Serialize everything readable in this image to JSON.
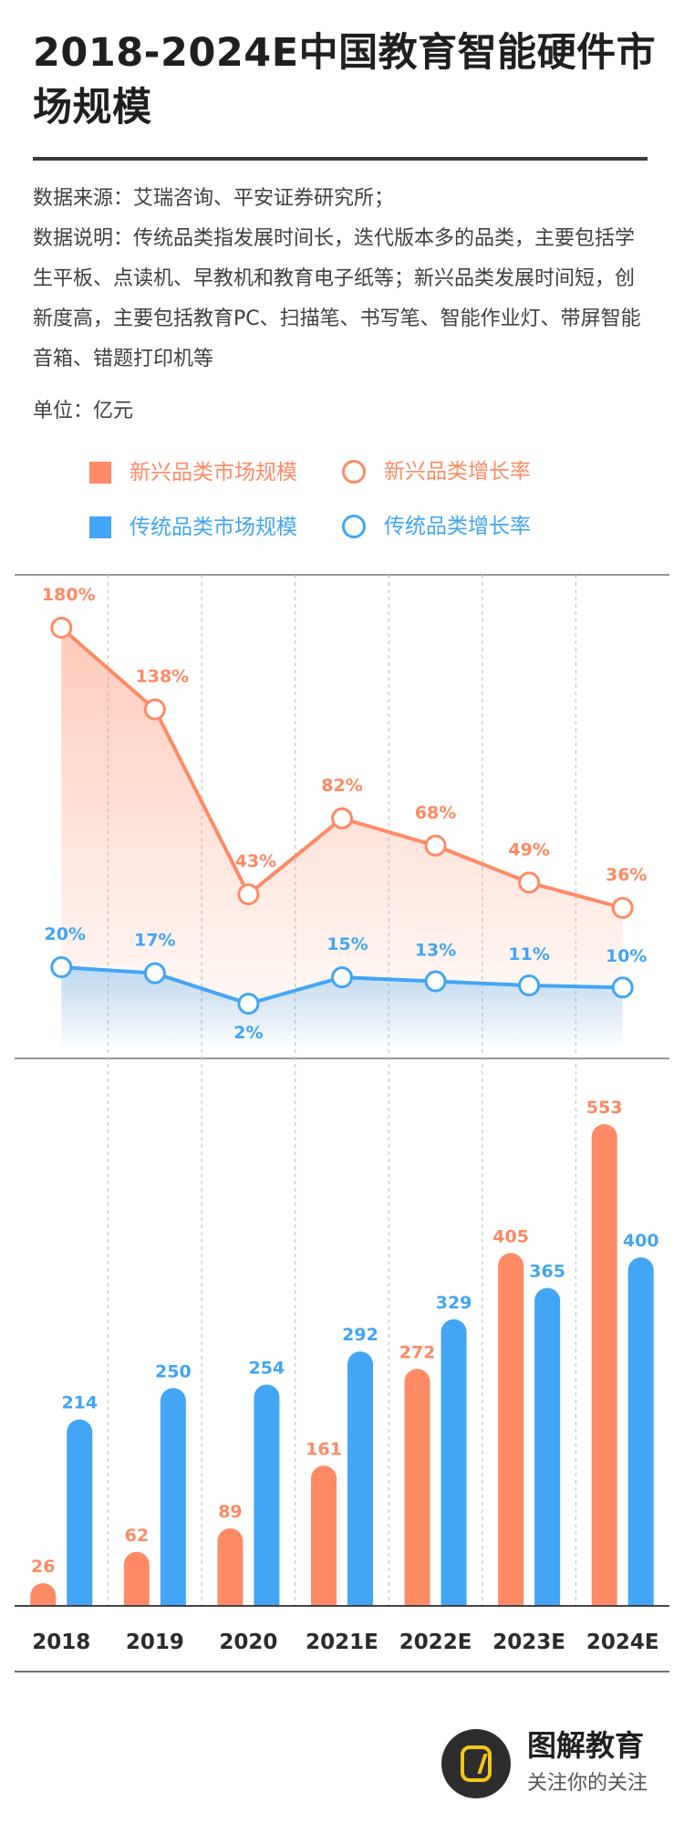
{
  "header": {
    "title": "2018-2024E中国教育智能硬件市场规模"
  },
  "notes": {
    "source": "数据来源：艾瑞咨询、平安证券研究所；",
    "explanation": "数据说明：传统品类指发展时间长，迭代版本多的品类，主要包括学生平板、点读机、早教机和教育电子纸等；新兴品类发展时间短，创新度高，主要包括教育PC、扫描笔、书写笔、智能作业灯、带屏智能音箱、错题打印机等"
  },
  "unit": "单位：亿元",
  "legend": {
    "emerging_size": "新兴品类市场规模",
    "emerging_growth": "新兴品类增长率",
    "traditional_size": "传统品类市场规模",
    "traditional_growth": "传统品类增长率"
  },
  "colors": {
    "emerging": "#ff8a65",
    "traditional": "#42a5f5",
    "grid": "#c9c9c9",
    "axis": "#444444"
  },
  "chart_data": [
    {
      "type": "line",
      "categories": [
        "2018",
        "2019",
        "2020",
        "2021E",
        "2022E",
        "2023E",
        "2024E"
      ],
      "series": [
        {
          "name": "新兴品类增长率",
          "values": [
            180,
            138,
            43,
            82,
            68,
            49,
            36
          ],
          "unit": "%"
        },
        {
          "name": "传统品类增长率",
          "values": [
            20,
            17,
            2,
            15,
            13,
            11,
            10
          ],
          "unit": "%"
        }
      ]
    },
    {
      "type": "bar",
      "categories": [
        "2018",
        "2019",
        "2020",
        "2021E",
        "2022E",
        "2023E",
        "2024E"
      ],
      "series": [
        {
          "name": "新兴品类市场规模",
          "values": [
            26,
            62,
            89,
            161,
            272,
            405,
            553
          ]
        },
        {
          "name": "传统品类市场规模",
          "values": [
            214,
            250,
            254,
            292,
            329,
            365,
            400
          ]
        }
      ]
    }
  ],
  "footer": {
    "brand": "图解教育",
    "slogan": "关注你的关注"
  }
}
